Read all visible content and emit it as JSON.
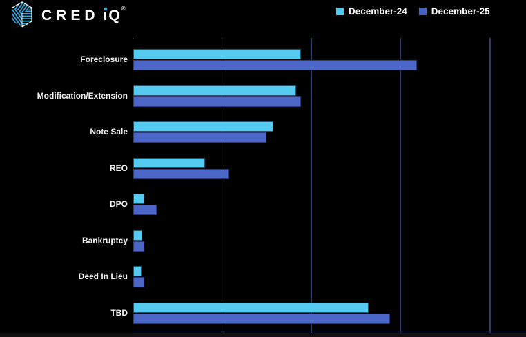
{
  "header": {
    "brand": {
      "wordmark_cred": "CRED",
      "wordmark_i_stem": "ı",
      "wordmark_q": "Q",
      "registered_mark": "®",
      "logo_stripe_color": "#29ABE2"
    }
  },
  "chart_data": {
    "type": "bar",
    "orientation": "horizontal",
    "title": "",
    "categories": [
      "Foreclosure",
      "Modification/Extension",
      "Note Sale",
      "REO",
      "DPO",
      "Bankruptcy",
      "Deed In Lieu",
      "TBD"
    ],
    "series": [
      {
        "name": "December-24",
        "color": "#56CBF2",
        "border_color": "#1A566F",
        "legend_swatch_color": "#4EC9F0",
        "values": [
          1.88,
          1.82,
          1.57,
          0.8,
          0.12,
          0.1,
          0.09,
          2.63
        ]
      },
      {
        "name": "December-25",
        "color": "#4D67C9",
        "border_color": "#283A82",
        "legend_swatch_color": "#4365C7",
        "values": [
          3.17,
          1.88,
          1.49,
          1.07,
          0.26,
          0.12,
          0.12,
          2.87
        ]
      }
    ],
    "xlabel": "",
    "ylabel": "",
    "xlim": [
      0,
      4.4
    ],
    "grid_x": [
      1,
      2,
      3,
      4
    ],
    "x_tick_labels_visible": false,
    "value_units": "gridline-units (axis unlabeled)",
    "legend_position": "top-right",
    "background_color": "#000000",
    "gridline_color": "#24406F",
    "axis_line_color": "#8C8C8C"
  }
}
